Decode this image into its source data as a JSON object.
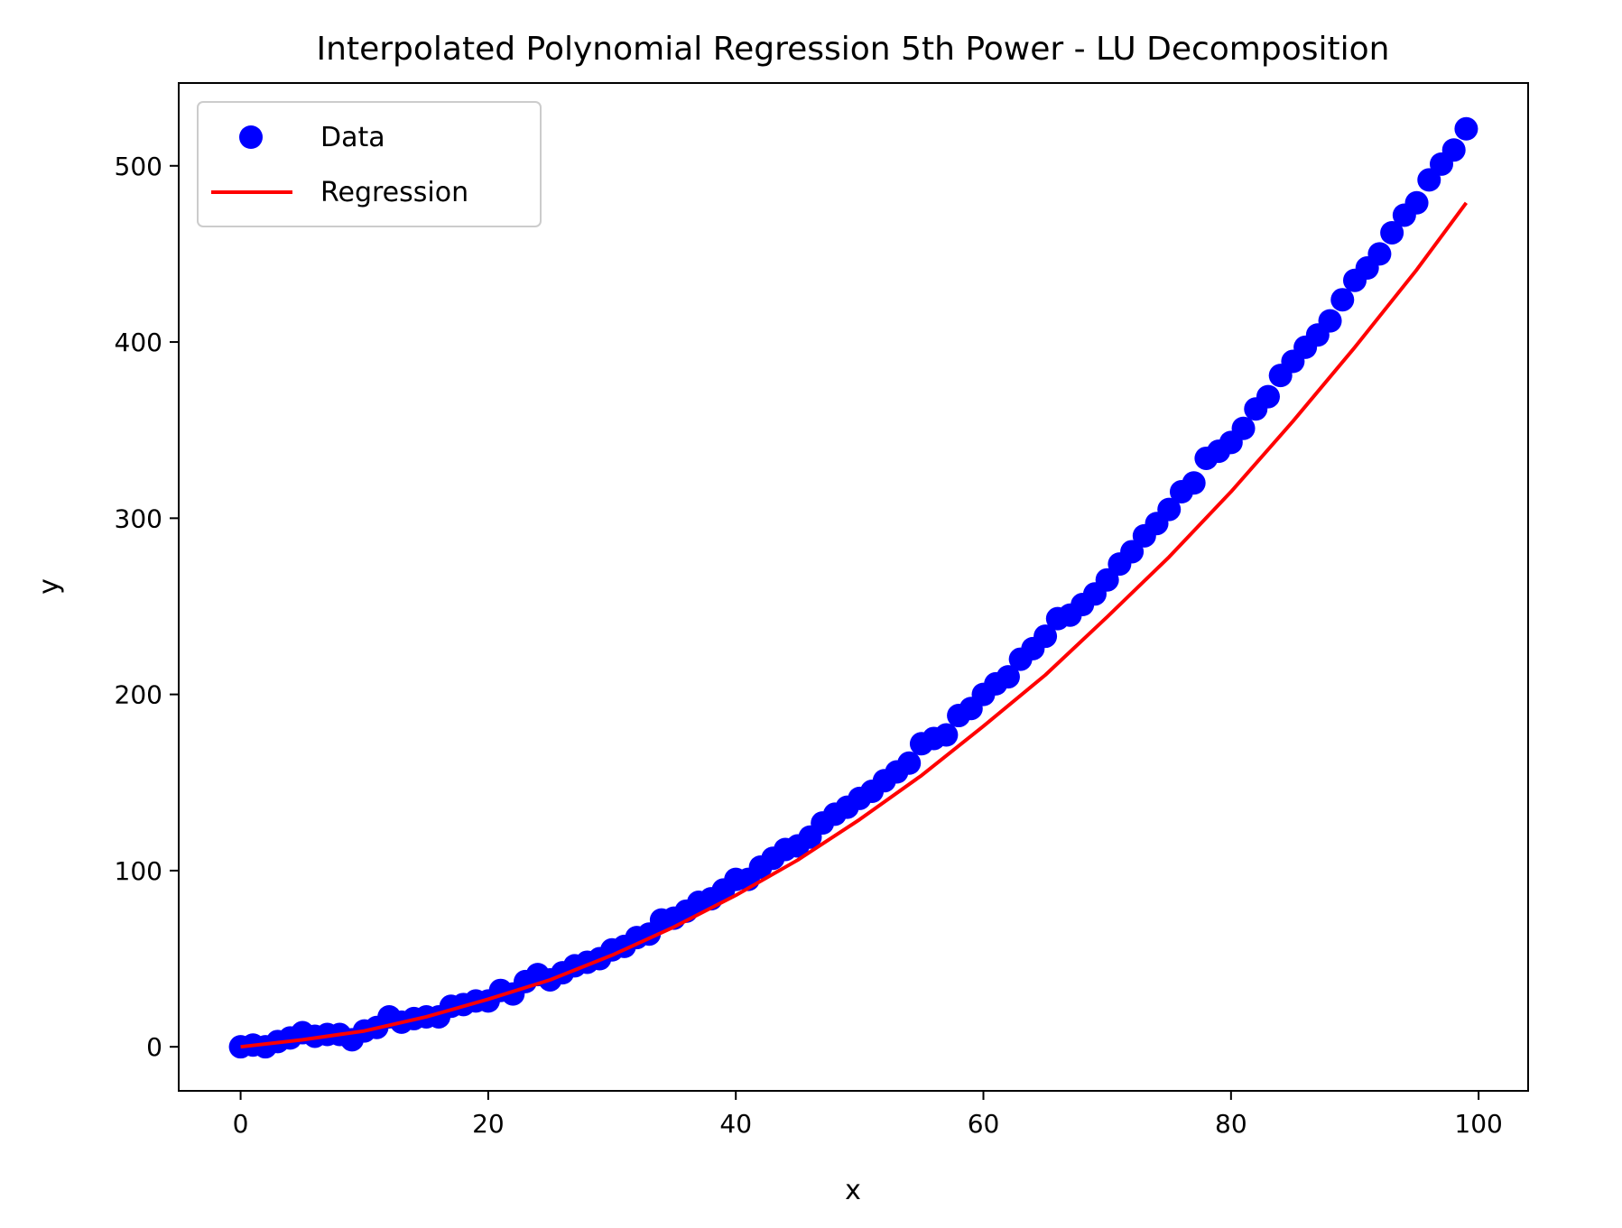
{
  "chart_data": {
    "type": "scatter",
    "title": "Interpolated Polynomial Regression 5th Power - LU Decomposition",
    "xlabel": "x",
    "ylabel": "y",
    "xlim": [
      -5,
      104
    ],
    "ylim": [
      -25,
      547
    ],
    "xticks": [
      0,
      20,
      40,
      60,
      80,
      100
    ],
    "yticks": [
      0,
      100,
      200,
      300,
      400,
      500
    ],
    "grid": false,
    "legend": {
      "placement": "top-left",
      "entries": [
        "Data",
        "Regression"
      ]
    },
    "series": [
      {
        "name": "Data",
        "kind": "scatter",
        "color": "#0000ff",
        "x": [
          0,
          1,
          2,
          3,
          4,
          5,
          6,
          7,
          8,
          9,
          10,
          11,
          12,
          13,
          14,
          15,
          16,
          17,
          18,
          19,
          20,
          21,
          22,
          23,
          24,
          25,
          26,
          27,
          28,
          29,
          30,
          31,
          32,
          33,
          34,
          35,
          36,
          37,
          38,
          39,
          40,
          41,
          42,
          43,
          44,
          45,
          46,
          47,
          48,
          49,
          50,
          51,
          52,
          53,
          54,
          55,
          56,
          57,
          58,
          59,
          60,
          61,
          62,
          63,
          64,
          65,
          66,
          67,
          68,
          69,
          70,
          71,
          72,
          73,
          74,
          75,
          76,
          77,
          78,
          79,
          80,
          81,
          82,
          83,
          84,
          85,
          86,
          87,
          88,
          89,
          90,
          91,
          92,
          93,
          94,
          95,
          96,
          97,
          98,
          99
        ],
        "y": [
          0,
          1,
          0,
          3,
          5,
          8,
          6,
          7,
          7,
          4,
          9,
          11,
          17,
          14,
          16,
          17,
          17,
          23,
          24,
          26,
          26,
          32,
          30,
          37,
          41,
          38,
          42,
          46,
          48,
          50,
          55,
          57,
          62,
          64,
          72,
          73,
          77,
          82,
          84,
          89,
          95,
          95,
          102,
          107,
          112,
          114,
          119,
          127,
          132,
          136,
          141,
          145,
          151,
          156,
          161,
          172,
          175,
          177,
          188,
          192,
          200,
          206,
          210,
          220,
          226,
          233,
          243,
          245,
          251,
          257,
          265,
          274,
          281,
          290,
          297,
          305,
          315,
          320,
          334,
          338,
          343,
          351,
          362,
          369,
          381,
          389,
          397,
          404,
          412,
          424,
          435,
          442,
          450,
          462,
          472,
          479,
          492,
          501,
          509,
          521
        ]
      },
      {
        "name": "Regression",
        "kind": "line",
        "color": "#ff0000",
        "x": [
          0,
          5,
          10,
          15,
          20,
          25,
          30,
          35,
          40,
          45,
          50,
          55,
          60,
          65,
          70,
          75,
          80,
          85,
          90,
          95,
          99
        ],
        "y": [
          0,
          4,
          9,
          17,
          27,
          38,
          52,
          68,
          86,
          106,
          129,
          154,
          182,
          211,
          244,
          278,
          315,
          355,
          397,
          441,
          479
        ]
      }
    ]
  }
}
